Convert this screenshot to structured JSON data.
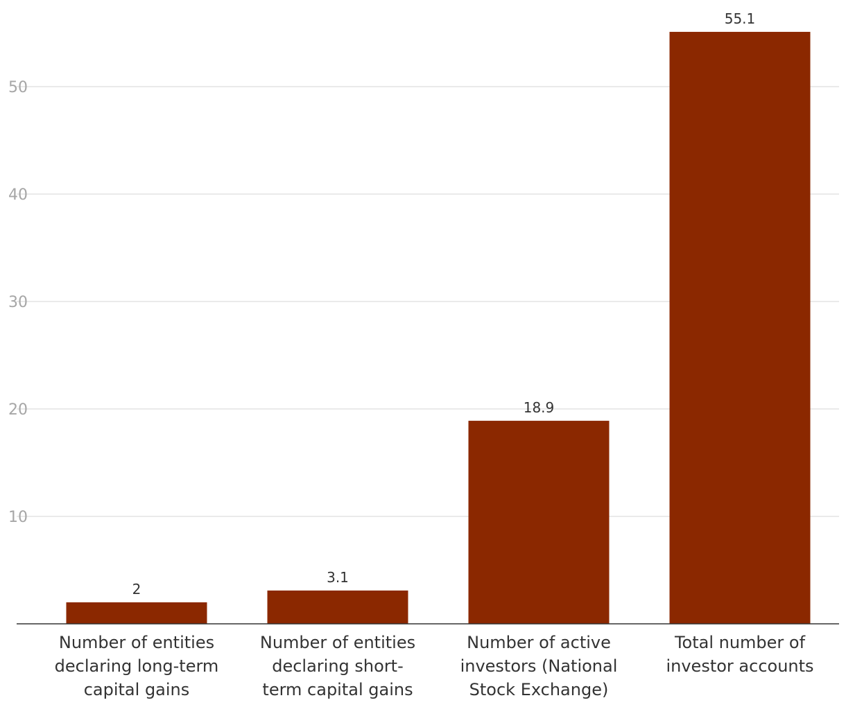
{
  "chart_data": {
    "type": "bar",
    "title": "",
    "xlabel": "",
    "ylabel": "",
    "categories": [
      [
        "Number of entities",
        "declaring long-term",
        "capital gains"
      ],
      [
        "Number of entities",
        "declaring short-",
        "term capital gains"
      ],
      [
        "Number of active",
        "investors (National",
        "Stock Exchange)"
      ],
      [
        "Total number of",
        "investor accounts"
      ]
    ],
    "values": [
      2,
      3.1,
      18.9,
      55.1
    ],
    "data_labels": [
      "2",
      "3.1",
      "18.9",
      "55.1"
    ],
    "ylim": [
      0,
      57
    ],
    "yticks": [
      10,
      20,
      30,
      40,
      50
    ],
    "grid": true,
    "legend": "none",
    "bar_color": "#8b2800"
  }
}
